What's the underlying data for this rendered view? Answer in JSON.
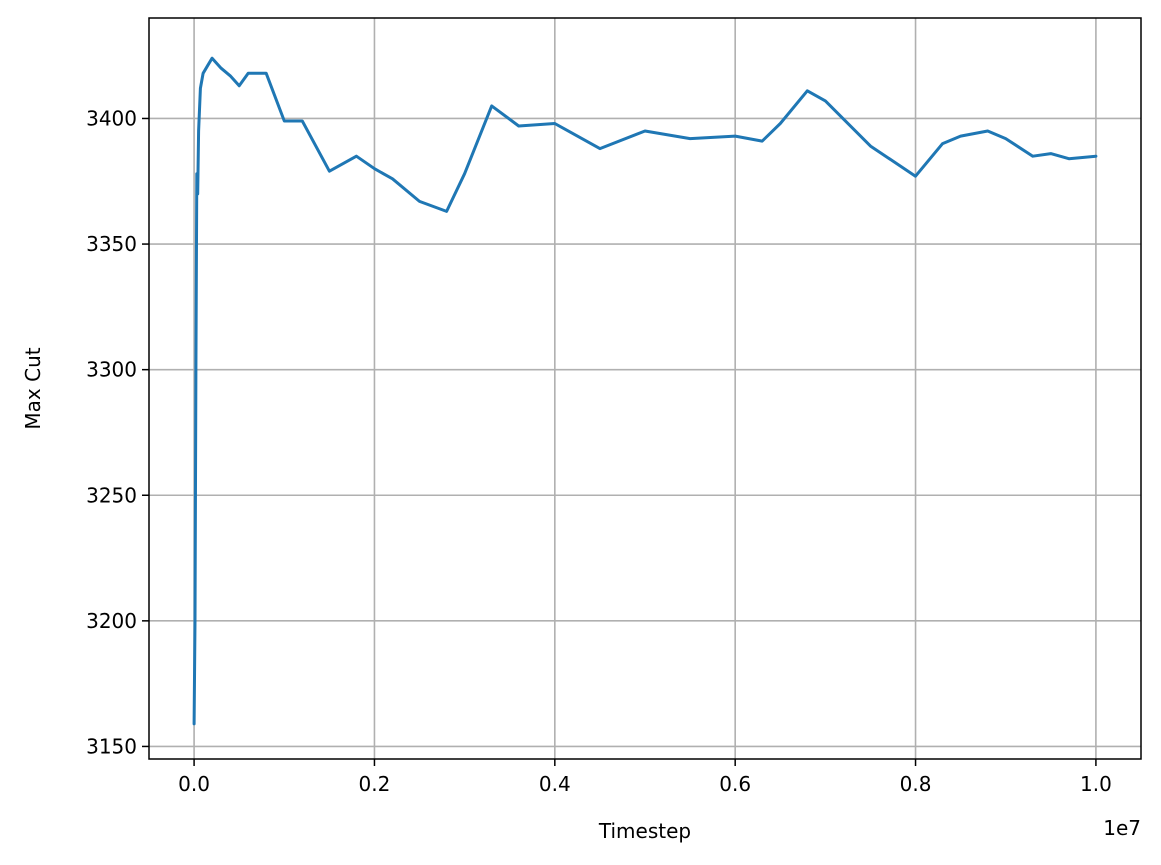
{
  "chart_data": {
    "type": "line",
    "title": "",
    "xlabel": "Timestep",
    "ylabel": "Max Cut",
    "x_offset_label": "1e7",
    "x_scale_factor": 10000000,
    "xlim": [
      -0.05,
      1.05
    ],
    "ylim": [
      3145,
      3440
    ],
    "grid": true,
    "legend": "none",
    "line_color": "#1f77b4",
    "x_ticks": [
      0.0,
      0.2,
      0.4,
      0.6,
      0.8,
      1.0
    ],
    "x_tick_labels": [
      "0.0",
      "0.2",
      "0.4",
      "0.6",
      "0.8",
      "1.0"
    ],
    "y_ticks": [
      3150,
      3200,
      3250,
      3300,
      3350,
      3400
    ],
    "y_tick_labels": [
      "3150",
      "3200",
      "3250",
      "3300",
      "3350",
      "3400"
    ],
    "series": [
      {
        "name": "",
        "x": [
          0.0,
          0.001,
          0.002,
          0.003,
          0.004,
          0.005,
          0.007,
          0.01,
          0.015,
          0.02,
          0.03,
          0.04,
          0.05,
          0.06,
          0.08,
          0.1,
          0.12,
          0.15,
          0.18,
          0.2,
          0.22,
          0.25,
          0.28,
          0.3,
          0.33,
          0.36,
          0.4,
          0.45,
          0.5,
          0.55,
          0.6,
          0.63,
          0.65,
          0.68,
          0.7,
          0.75,
          0.8,
          0.83,
          0.85,
          0.88,
          0.9,
          0.93,
          0.95,
          0.97,
          1.0
        ],
        "y": [
          3159,
          3200,
          3300,
          3378,
          3370,
          3395,
          3412,
          3418,
          3421,
          3424,
          3420,
          3417,
          3413,
          3418,
          3418,
          3399,
          3399,
          3379,
          3385,
          3380,
          3376,
          3367,
          3363,
          3378,
          3405,
          3397,
          3398,
          3388,
          3395,
          3392,
          3393,
          3391,
          3398,
          3411,
          3407,
          3389,
          3377,
          3390,
          3393,
          3395,
          3392,
          3385,
          3386,
          3384,
          3385
        ]
      }
    ]
  }
}
